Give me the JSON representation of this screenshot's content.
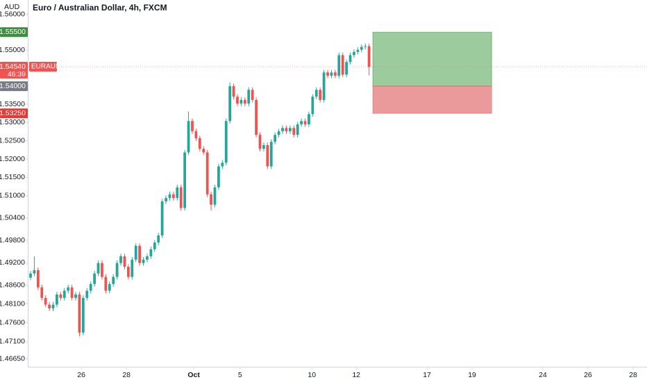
{
  "chart_data": {
    "type": "candlestick",
    "title": "Euro / Australian Dollar, 4h, FXCM",
    "y_unit": "AUD",
    "log_scale": true,
    "grid": false,
    "up_color": "#26a69a",
    "down_color": "#ef5350",
    "ylim": [
      1.4644,
      1.564
    ],
    "yticks": [
      {
        "value": 1.56,
        "label": "1.56000"
      },
      {
        "value": 1.55,
        "label": "1.55000"
      },
      {
        "value": 1.535,
        "label": "1.53500"
      },
      {
        "value": 1.53,
        "label": "1.53000"
      },
      {
        "value": 1.525,
        "label": "1.52500"
      },
      {
        "value": 1.52,
        "label": "1.52000"
      },
      {
        "value": 1.515,
        "label": "1.51500"
      },
      {
        "value": 1.51,
        "label": "1.51000"
      },
      {
        "value": 1.504,
        "label": "1.50400"
      },
      {
        "value": 1.498,
        "label": "1.49800"
      },
      {
        "value": 1.492,
        "label": "1.49200"
      },
      {
        "value": 1.486,
        "label": "1.48600"
      },
      {
        "value": 1.481,
        "label": "1.48100"
      },
      {
        "value": 1.476,
        "label": "1.47600"
      },
      {
        "value": 1.471,
        "label": "1.47100"
      },
      {
        "value": 1.4665,
        "label": "1.46650"
      }
    ],
    "xlim": [
      -0.74,
      163.9
    ],
    "xticks": [
      {
        "value": 13.5,
        "label": "26"
      },
      {
        "value": 25.5,
        "label": "28"
      },
      {
        "value": 43.4,
        "label": "Oct"
      },
      {
        "value": 55.7,
        "label": "5"
      },
      {
        "value": 74.8,
        "label": "10"
      },
      {
        "value": 86.6,
        "label": "12"
      },
      {
        "value": 105.4,
        "label": "17"
      },
      {
        "value": 117.4,
        "label": "19"
      },
      {
        "value": 136.2,
        "label": "24"
      },
      {
        "value": 148.2,
        "label": "26"
      },
      {
        "value": 160.2,
        "label": "28"
      }
    ],
    "open": [
      1.488,
      1.4891,
      1.49,
      1.4854,
      1.4826,
      1.4808,
      1.4798,
      1.4808,
      1.4835,
      1.4826,
      1.4845,
      1.4854,
      1.4826,
      1.4835,
      1.4734,
      1.4826,
      1.4845,
      1.4863,
      1.4891,
      1.4919,
      1.4882,
      1.4845,
      1.4863,
      1.4882,
      1.4919,
      1.4937,
      1.4909,
      1.4882,
      1.4928,
      1.4965,
      1.4919,
      1.4928,
      1.4937,
      1.4956,
      1.4974,
      1.4993,
      1.5085,
      1.5094,
      1.5104,
      1.5094,
      1.5123,
      1.5067,
      1.5218,
      1.5304,
      1.5276,
      1.5257,
      1.5228,
      1.5218,
      1.5104,
      1.5076,
      1.5123,
      1.518,
      1.519,
      1.5304,
      1.54,
      1.5371,
      1.5352,
      1.5362,
      1.5352,
      1.539,
      1.5362,
      1.5266,
      1.5228,
      1.5238,
      1.518,
      1.5247,
      1.5266,
      1.5276,
      1.5285,
      1.5276,
      1.5285,
      1.5266,
      1.5295,
      1.5304,
      1.5295,
      1.5323,
      1.5371,
      1.539,
      1.5362,
      1.5438,
      1.5429,
      1.5438,
      1.5429,
      1.5486,
      1.5432,
      1.5467,
      1.5486,
      1.5495,
      1.5501,
      1.5509,
      1.5511
    ],
    "high": [
      1.4898,
      1.4937,
      1.4907,
      1.4861,
      1.4833,
      1.4815,
      1.4815,
      1.4842,
      1.4842,
      1.4852,
      1.4861,
      1.4861,
      1.4842,
      1.4842,
      1.4833,
      1.4852,
      1.487,
      1.4898,
      1.4926,
      1.4926,
      1.4889,
      1.487,
      1.4889,
      1.4926,
      1.4944,
      1.4944,
      1.4916,
      1.4935,
      1.4972,
      1.4972,
      1.4935,
      1.4944,
      1.4963,
      1.4981,
      1.5,
      1.5092,
      1.5101,
      1.5111,
      1.5111,
      1.513,
      1.513,
      1.5225,
      1.533,
      1.5311,
      1.5283,
      1.5264,
      1.5235,
      1.5225,
      1.5111,
      1.513,
      1.5187,
      1.5197,
      1.5311,
      1.541,
      1.5407,
      1.5378,
      1.5369,
      1.5369,
      1.5397,
      1.5397,
      1.5369,
      1.5273,
      1.5245,
      1.5245,
      1.5254,
      1.5273,
      1.5283,
      1.5292,
      1.5292,
      1.5292,
      1.5292,
      1.5302,
      1.5311,
      1.5311,
      1.533,
      1.5378,
      1.5397,
      1.5397,
      1.5445,
      1.5445,
      1.5445,
      1.5445,
      1.5493,
      1.5493,
      1.5474,
      1.5493,
      1.5502,
      1.5508,
      1.5516,
      1.5518,
      1.5518
    ],
    "low": [
      1.4873,
      1.4884,
      1.4847,
      1.4819,
      1.4801,
      1.4791,
      1.4791,
      1.4801,
      1.4819,
      1.4819,
      1.4838,
      1.4819,
      1.4819,
      1.4724,
      1.4727,
      1.4819,
      1.4838,
      1.4856,
      1.4884,
      1.4875,
      1.4838,
      1.4838,
      1.4856,
      1.4875,
      1.4912,
      1.4902,
      1.4875,
      1.4875,
      1.4921,
      1.4912,
      1.4912,
      1.4921,
      1.493,
      1.4949,
      1.4967,
      1.4986,
      1.5078,
      1.5087,
      1.5087,
      1.5087,
      1.506,
      1.506,
      1.5211,
      1.5269,
      1.525,
      1.5221,
      1.5211,
      1.5097,
      1.506,
      1.5069,
      1.5116,
      1.5173,
      1.5183,
      1.5297,
      1.5364,
      1.5345,
      1.5345,
      1.5345,
      1.5345,
      1.5355,
      1.5259,
      1.5221,
      1.5221,
      1.5173,
      1.5173,
      1.524,
      1.5259,
      1.5269,
      1.5269,
      1.5269,
      1.5259,
      1.5259,
      1.5288,
      1.5288,
      1.5288,
      1.5316,
      1.5364,
      1.5355,
      1.5355,
      1.5422,
      1.5422,
      1.5422,
      1.5422,
      1.5425,
      1.5425,
      1.546,
      1.5479,
      1.5488,
      1.5494,
      1.5502,
      1.543
    ],
    "close": [
      1.4891,
      1.49,
      1.4854,
      1.4826,
      1.4808,
      1.4798,
      1.4808,
      1.4835,
      1.4826,
      1.4845,
      1.4854,
      1.4826,
      1.4835,
      1.4734,
      1.4826,
      1.4845,
      1.4863,
      1.4891,
      1.4919,
      1.4882,
      1.4845,
      1.4863,
      1.4882,
      1.4919,
      1.4937,
      1.4909,
      1.4882,
      1.4928,
      1.4965,
      1.4919,
      1.4928,
      1.4937,
      1.4956,
      1.4974,
      1.4993,
      1.5085,
      1.5094,
      1.5104,
      1.5094,
      1.5123,
      1.5067,
      1.5218,
      1.5304,
      1.5276,
      1.5257,
      1.5228,
      1.5218,
      1.5104,
      1.5076,
      1.5123,
      1.518,
      1.519,
      1.5304,
      1.54,
      1.5371,
      1.5352,
      1.5362,
      1.5352,
      1.539,
      1.5362,
      1.5266,
      1.5228,
      1.5238,
      1.518,
      1.5247,
      1.5266,
      1.5276,
      1.5285,
      1.5276,
      1.5285,
      1.5266,
      1.5295,
      1.5304,
      1.5295,
      1.5323,
      1.5371,
      1.539,
      1.5362,
      1.5438,
      1.5429,
      1.5438,
      1.5429,
      1.5486,
      1.5432,
      1.5467,
      1.5486,
      1.5495,
      1.5501,
      1.5509,
      1.5511,
      1.5453
    ],
    "last_price": {
      "value": 1.5454,
      "label": "1.54540",
      "countdown": "46:39",
      "symbol": "EURAUD",
      "color": "#f05350"
    },
    "position": {
      "xlim": [
        91,
        122.6
      ],
      "target": {
        "value": 1.555,
        "label": "1.55500",
        "color": "#3d8f40"
      },
      "entry": {
        "value": 1.54,
        "label": "1.54000",
        "color": "#787b86"
      },
      "stop": {
        "value": 1.5325,
        "label": "1.53250",
        "color": "#e53935"
      },
      "profit_color": "#9ccc9e",
      "loss_color": "#eb9a9b"
    }
  }
}
